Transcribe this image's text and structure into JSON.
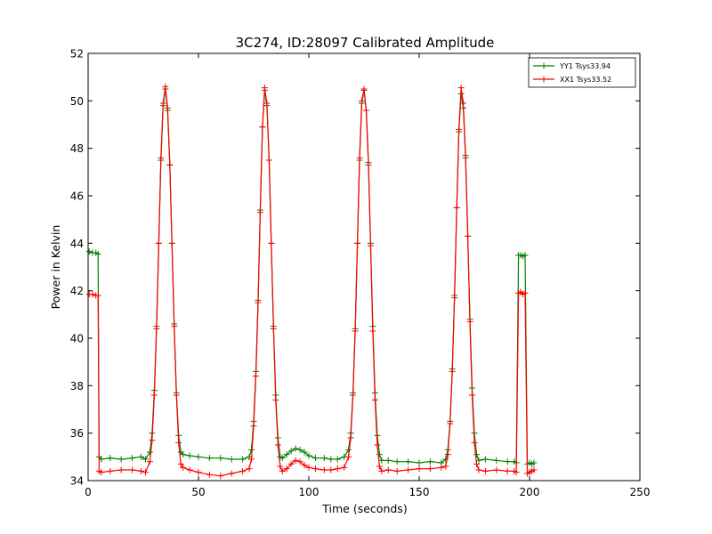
{
  "chart_data": {
    "type": "line",
    "title": "3C274, ID:28097 Calibrated Amplitude",
    "xlabel": "Time (seconds)",
    "ylabel": "Power in Kelvin",
    "xlim": [
      0,
      250
    ],
    "ylim": [
      34,
      52
    ],
    "xticks": [
      0,
      50,
      100,
      150,
      200,
      250
    ],
    "yticks": [
      34,
      36,
      38,
      40,
      42,
      44,
      46,
      48,
      50,
      52
    ],
    "grid": false,
    "legend_position": "top-right",
    "marker": "+",
    "series": [
      {
        "name": "YY1 Tsys33.94",
        "color": "#008000",
        "points": [
          [
            0.5,
            43.65
          ],
          [
            2,
            43.6
          ],
          [
            3.5,
            43.6
          ],
          [
            4.5,
            43.55
          ],
          [
            5,
            35.0
          ],
          [
            6,
            34.9
          ],
          [
            10,
            34.95
          ],
          [
            15,
            34.9
          ],
          [
            20,
            34.95
          ],
          [
            24,
            35.0
          ],
          [
            26,
            34.9
          ],
          [
            28,
            35.2
          ],
          [
            29,
            36.0
          ],
          [
            30,
            37.8
          ],
          [
            31,
            40.5
          ],
          [
            32,
            44.0
          ],
          [
            33,
            47.5
          ],
          [
            34,
            49.8
          ],
          [
            35,
            50.5
          ],
          [
            36,
            49.6
          ],
          [
            37,
            47.3
          ],
          [
            38,
            44.0
          ],
          [
            39,
            40.6
          ],
          [
            40,
            37.7
          ],
          [
            41,
            35.9
          ],
          [
            42,
            35.2
          ],
          [
            43,
            35.1
          ],
          [
            46,
            35.05
          ],
          [
            50,
            35.0
          ],
          [
            55,
            34.95
          ],
          [
            60,
            34.95
          ],
          [
            65,
            34.9
          ],
          [
            70,
            34.9
          ],
          [
            73,
            35.0
          ],
          [
            74,
            35.3
          ],
          [
            75,
            36.5
          ],
          [
            76,
            38.6
          ],
          [
            77,
            41.6
          ],
          [
            78,
            45.4
          ],
          [
            79,
            48.9
          ],
          [
            80,
            50.45
          ],
          [
            81,
            49.8
          ],
          [
            82,
            47.5
          ],
          [
            83,
            44.0
          ],
          [
            84,
            40.5
          ],
          [
            85,
            37.6
          ],
          [
            86,
            35.8
          ],
          [
            87,
            35.0
          ],
          [
            88,
            34.95
          ],
          [
            90,
            35.1
          ],
          [
            92,
            35.25
          ],
          [
            94,
            35.35
          ],
          [
            96,
            35.3
          ],
          [
            98,
            35.2
          ],
          [
            100,
            35.05
          ],
          [
            103,
            34.95
          ],
          [
            107,
            34.95
          ],
          [
            110,
            34.9
          ],
          [
            113,
            34.9
          ],
          [
            116,
            35.0
          ],
          [
            118,
            35.3
          ],
          [
            119,
            36.0
          ],
          [
            120,
            37.7
          ],
          [
            121,
            40.4
          ],
          [
            122,
            44.0
          ],
          [
            123,
            47.5
          ],
          [
            124,
            49.9
          ],
          [
            125,
            50.45
          ],
          [
            126,
            49.6
          ],
          [
            127,
            47.4
          ],
          [
            128,
            44.0
          ],
          [
            129,
            40.5
          ],
          [
            130,
            37.7
          ],
          [
            131,
            35.9
          ],
          [
            132,
            35.1
          ],
          [
            133,
            34.85
          ],
          [
            136,
            34.85
          ],
          [
            140,
            34.8
          ],
          [
            145,
            34.8
          ],
          [
            150,
            34.75
          ],
          [
            155,
            34.8
          ],
          [
            160,
            34.75
          ],
          [
            162,
            34.9
          ],
          [
            163,
            35.3
          ],
          [
            164,
            36.5
          ],
          [
            165,
            38.7
          ],
          [
            166,
            41.8
          ],
          [
            167,
            45.5
          ],
          [
            168,
            48.7
          ],
          [
            169,
            50.3
          ],
          [
            170,
            49.7
          ],
          [
            171,
            47.6
          ],
          [
            172,
            44.3
          ],
          [
            173,
            40.8
          ],
          [
            174,
            37.9
          ],
          [
            175,
            36.0
          ],
          [
            176,
            35.1
          ],
          [
            177,
            34.85
          ],
          [
            180,
            34.9
          ],
          [
            185,
            34.85
          ],
          [
            190,
            34.8
          ],
          [
            193,
            34.8
          ],
          [
            194,
            34.75
          ],
          [
            195,
            43.5
          ],
          [
            196,
            43.5
          ],
          [
            197,
            43.45
          ],
          [
            198,
            43.5
          ],
          [
            199,
            34.7
          ],
          [
            200,
            34.75
          ],
          [
            201,
            34.7
          ],
          [
            202,
            34.75
          ]
        ]
      },
      {
        "name": "XX1 Tsys33.52",
        "color": "#ff0000",
        "points": [
          [
            0.5,
            41.85
          ],
          [
            2,
            41.85
          ],
          [
            3.5,
            41.8
          ],
          [
            4.5,
            41.8
          ],
          [
            5,
            34.4
          ],
          [
            6,
            34.35
          ],
          [
            10,
            34.4
          ],
          [
            15,
            34.45
          ],
          [
            20,
            34.45
          ],
          [
            24,
            34.4
          ],
          [
            26,
            34.35
          ],
          [
            28,
            34.8
          ],
          [
            29,
            35.7
          ],
          [
            30,
            37.6
          ],
          [
            31,
            40.4
          ],
          [
            32,
            44.0
          ],
          [
            33,
            47.6
          ],
          [
            34,
            49.9
          ],
          [
            35,
            50.6
          ],
          [
            36,
            49.7
          ],
          [
            37,
            47.3
          ],
          [
            38,
            44.0
          ],
          [
            39,
            40.5
          ],
          [
            40,
            37.6
          ],
          [
            41,
            35.6
          ],
          [
            42,
            34.7
          ],
          [
            43,
            34.55
          ],
          [
            46,
            34.45
          ],
          [
            50,
            34.35
          ],
          [
            55,
            34.25
          ],
          [
            60,
            34.2
          ],
          [
            65,
            34.3
          ],
          [
            70,
            34.4
          ],
          [
            73,
            34.5
          ],
          [
            74,
            34.9
          ],
          [
            75,
            36.3
          ],
          [
            76,
            38.4
          ],
          [
            77,
            41.5
          ],
          [
            78,
            45.3
          ],
          [
            79,
            48.9
          ],
          [
            80,
            50.55
          ],
          [
            81,
            49.9
          ],
          [
            82,
            47.5
          ],
          [
            83,
            44.0
          ],
          [
            84,
            40.4
          ],
          [
            85,
            37.4
          ],
          [
            86,
            35.5
          ],
          [
            87,
            34.6
          ],
          [
            88,
            34.4
          ],
          [
            90,
            34.5
          ],
          [
            92,
            34.7
          ],
          [
            94,
            34.85
          ],
          [
            96,
            34.8
          ],
          [
            98,
            34.65
          ],
          [
            100,
            34.55
          ],
          [
            103,
            34.5
          ],
          [
            107,
            34.45
          ],
          [
            110,
            34.45
          ],
          [
            113,
            34.5
          ],
          [
            116,
            34.55
          ],
          [
            118,
            35.0
          ],
          [
            119,
            35.8
          ],
          [
            120,
            37.6
          ],
          [
            121,
            40.3
          ],
          [
            122,
            44.0
          ],
          [
            123,
            47.6
          ],
          [
            124,
            50.0
          ],
          [
            125,
            50.5
          ],
          [
            126,
            49.6
          ],
          [
            127,
            47.3
          ],
          [
            128,
            43.9
          ],
          [
            129,
            40.3
          ],
          [
            130,
            37.4
          ],
          [
            131,
            35.5
          ],
          [
            132,
            34.6
          ],
          [
            133,
            34.4
          ],
          [
            136,
            34.45
          ],
          [
            140,
            34.4
          ],
          [
            145,
            34.45
          ],
          [
            150,
            34.5
          ],
          [
            155,
            34.5
          ],
          [
            160,
            34.55
          ],
          [
            162,
            34.6
          ],
          [
            163,
            35.1
          ],
          [
            164,
            36.4
          ],
          [
            165,
            38.6
          ],
          [
            166,
            41.7
          ],
          [
            167,
            45.5
          ],
          [
            168,
            48.8
          ],
          [
            169,
            50.55
          ],
          [
            170,
            49.9
          ],
          [
            171,
            47.7
          ],
          [
            172,
            44.3
          ],
          [
            173,
            40.7
          ],
          [
            174,
            37.6
          ],
          [
            175,
            35.6
          ],
          [
            176,
            34.7
          ],
          [
            177,
            34.45
          ],
          [
            180,
            34.4
          ],
          [
            185,
            34.45
          ],
          [
            190,
            34.4
          ],
          [
            193,
            34.4
          ],
          [
            194,
            34.35
          ],
          [
            195,
            41.9
          ],
          [
            196,
            41.95
          ],
          [
            197,
            41.85
          ],
          [
            198,
            41.9
          ],
          [
            199,
            34.3
          ],
          [
            200,
            34.35
          ],
          [
            201,
            34.4
          ],
          [
            202,
            34.45
          ]
        ]
      }
    ]
  }
}
